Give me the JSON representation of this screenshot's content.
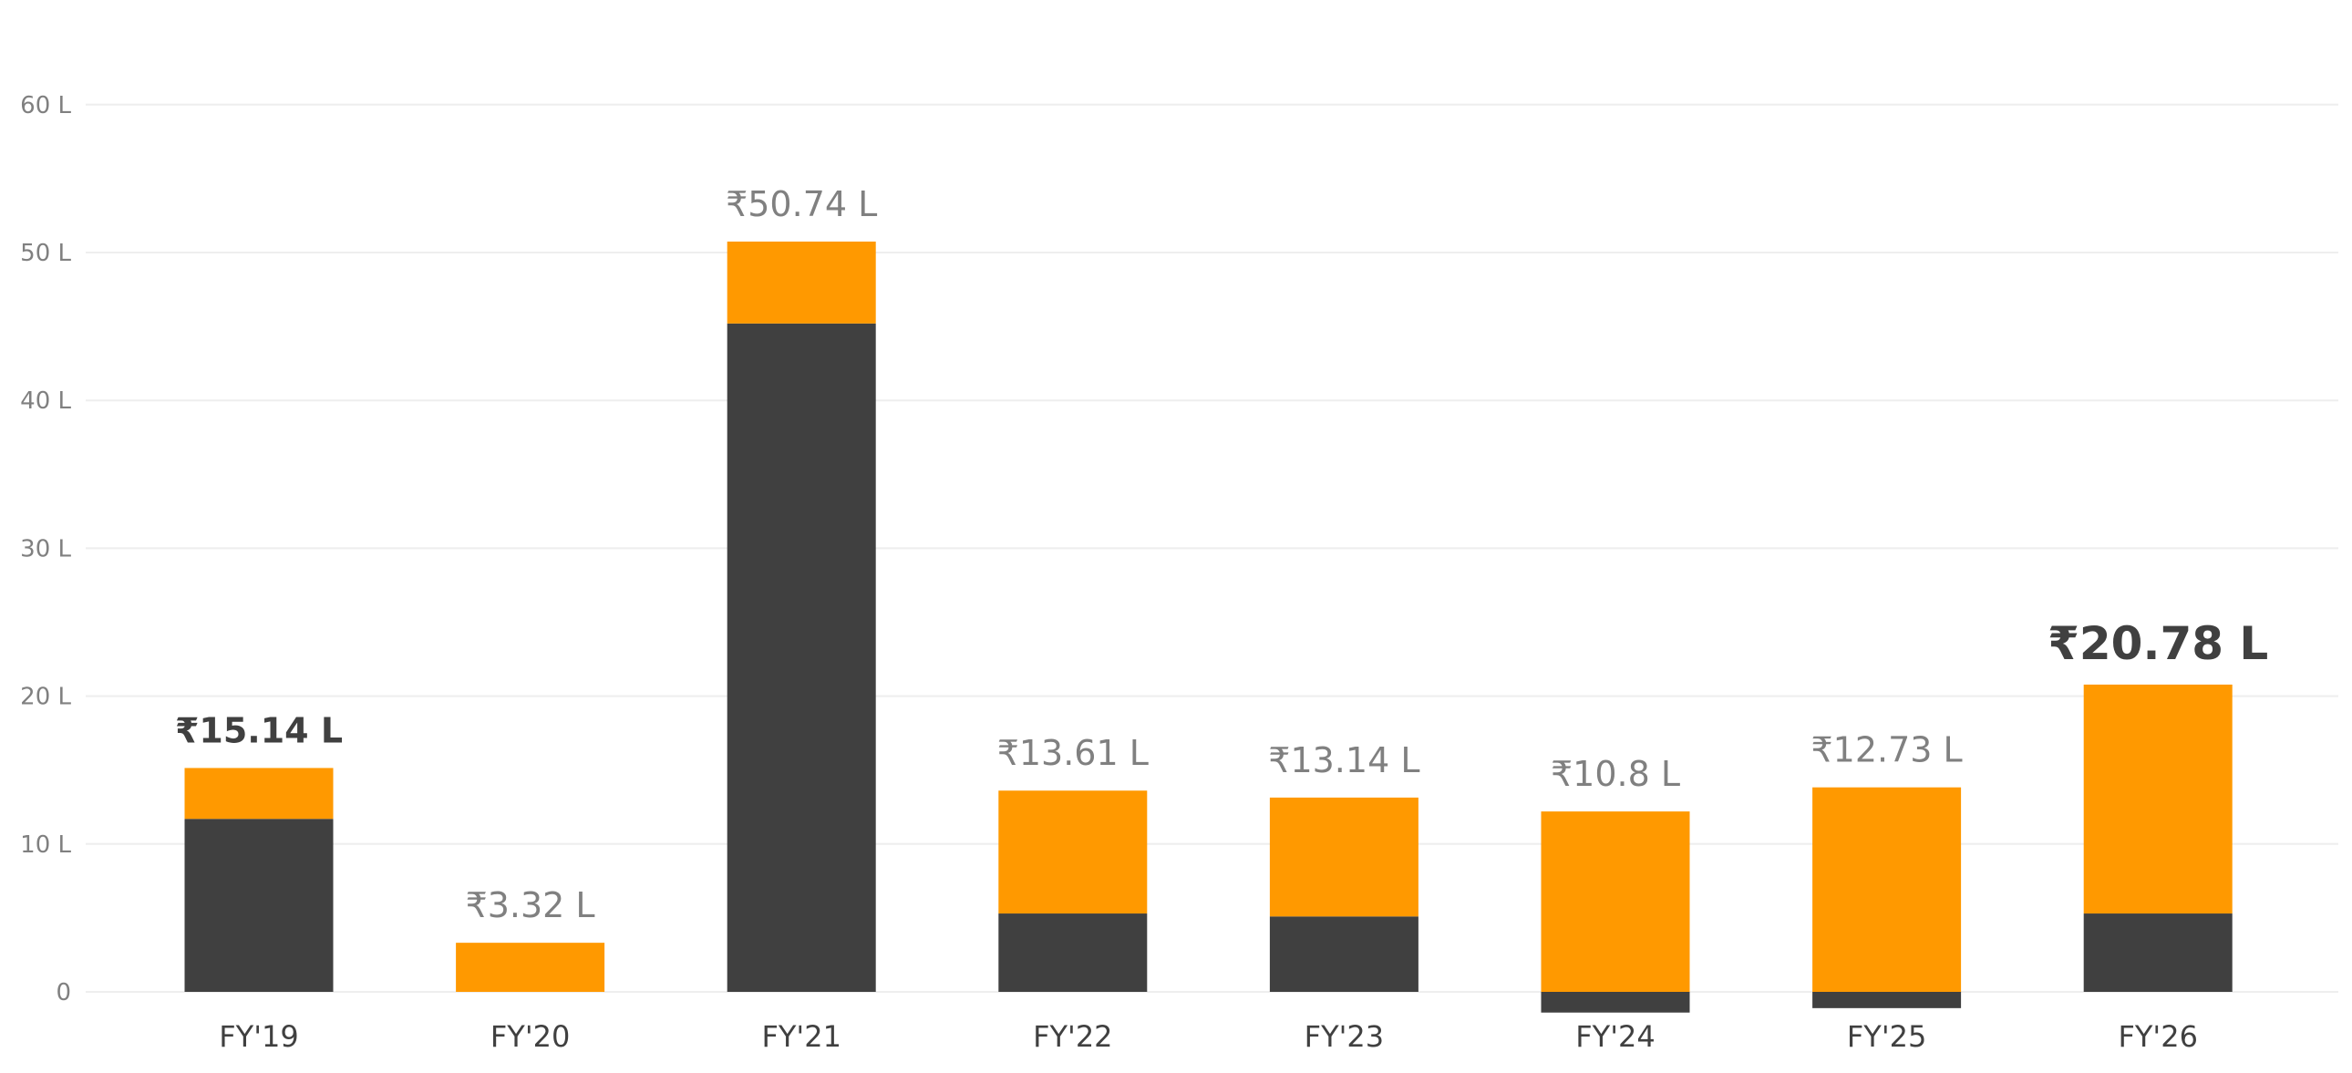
{
  "chart_data": {
    "type": "bar",
    "stacked": true,
    "title": "",
    "xlabel": "",
    "ylabel": "",
    "categories": [
      "FY'19",
      "FY'20",
      "FY'21",
      "FY'22",
      "FY'23",
      "FY'24",
      "FY'25",
      "FY'26"
    ],
    "series": [
      {
        "color": "#404040",
        "values": [
          11.7,
          0,
          45.2,
          5.3,
          5.1,
          -1.4,
          -1.1,
          5.3
        ]
      },
      {
        "color": "#ff9900",
        "values": [
          3.44,
          3.32,
          5.54,
          8.31,
          8.04,
          12.2,
          13.83,
          15.48
        ]
      }
    ],
    "total_labels": [
      "₹15.14 L",
      "₹3.32 L",
      "₹50.74 L",
      "₹13.61 L",
      "₹13.14 L",
      "₹10.8 L",
      "₹12.73 L",
      "₹20.78 L"
    ],
    "highlighted_labels": [
      0,
      7
    ],
    "highlight_color": "#404040",
    "label_color": "#808080",
    "y_ticks": [
      {
        "value": 0,
        "label": "0"
      },
      {
        "value": 10,
        "label": "10 L"
      },
      {
        "value": 20,
        "label": "20 L"
      },
      {
        "value": 30,
        "label": "30 L"
      },
      {
        "value": 40,
        "label": "40 L"
      },
      {
        "value": 50,
        "label": "50 L"
      },
      {
        "value": 60,
        "label": "60 L"
      }
    ],
    "ylim": [
      -2,
      60
    ],
    "grid": true,
    "legend": "none"
  }
}
